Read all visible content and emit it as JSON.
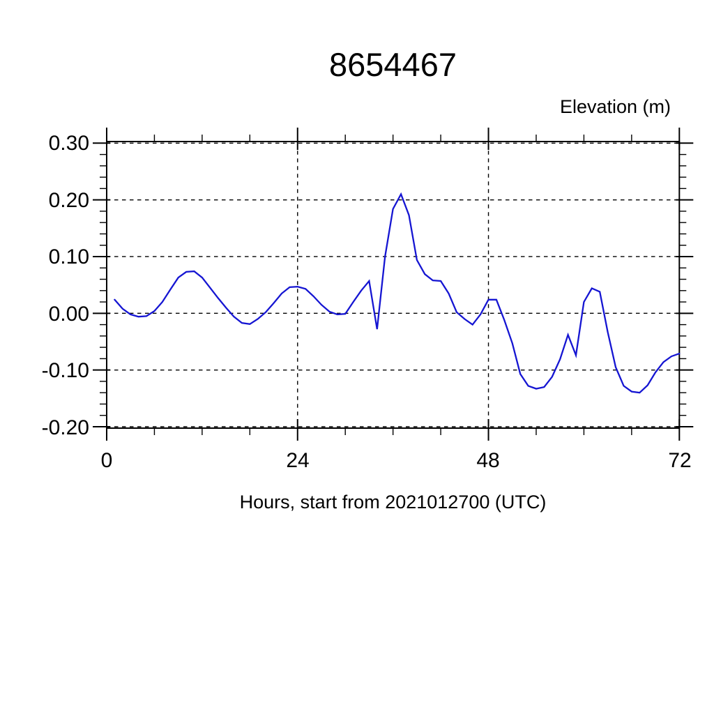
{
  "page": {
    "background": "#ffffff",
    "text_color": "#000000"
  },
  "chart_data": {
    "type": "line",
    "title": "8654467",
    "ylabel": "Elevation (m)",
    "xlabel": "Hours, start from 2021012700 (UTC)",
    "xlim": [
      0,
      72
    ],
    "ylim": [
      -0.2,
      0.3
    ],
    "x_ticks": [
      0,
      24,
      48,
      72
    ],
    "x_tick_labels": [
      "0",
      "24",
      "48",
      "72"
    ],
    "x_minor_step": 6,
    "y_ticks": [
      0.3,
      0.2,
      0.1,
      0.0,
      -0.1,
      -0.2
    ],
    "y_tick_labels": [
      "0.30",
      "0.20",
      "0.10",
      "0.00",
      "-0.10",
      "-0.20"
    ],
    "y_minor_step": 0.02,
    "grid": "dashed-major-both-axes",
    "legend": "none",
    "frame_color": "#000000",
    "grid_color": "#000000",
    "line_color": "#1515d2",
    "series": [
      {
        "name": "elevation",
        "x": [
          1,
          2,
          3,
          4,
          5,
          6,
          7,
          8,
          9,
          10,
          11,
          12,
          13,
          14,
          15,
          16,
          17,
          18,
          19,
          20,
          21,
          22,
          23,
          24,
          25,
          26,
          27,
          28,
          29,
          30,
          31,
          32,
          33,
          34,
          35,
          36,
          37,
          38,
          39,
          40,
          41,
          42,
          43,
          44,
          45,
          46,
          47,
          48,
          49,
          50,
          51,
          52,
          53,
          54,
          55,
          56,
          57,
          58,
          59,
          60,
          61,
          62,
          63,
          64,
          65,
          66,
          67,
          68,
          69,
          70,
          71,
          72
        ],
        "y": [
          0.024,
          0.008,
          -0.002,
          -0.006,
          -0.005,
          0.004,
          0.02,
          0.042,
          0.063,
          0.073,
          0.074,
          0.063,
          0.045,
          0.027,
          0.01,
          -0.006,
          -0.017,
          -0.019,
          -0.01,
          0.002,
          0.018,
          0.035,
          0.046,
          0.047,
          0.043,
          0.03,
          0.015,
          0.003,
          -0.002,
          -0.001,
          0.02,
          0.04,
          0.057,
          -0.028,
          0.1,
          0.184,
          0.21,
          0.173,
          0.094,
          0.069,
          0.058,
          0.057,
          0.035,
          0.002,
          -0.01,
          -0.02,
          -0.002,
          0.024,
          0.024,
          -0.012,
          -0.053,
          -0.107,
          -0.128,
          -0.133,
          -0.13,
          -0.112,
          -0.081,
          -0.038,
          -0.074,
          0.02,
          0.044,
          0.038,
          -0.033,
          -0.095,
          -0.128,
          -0.138,
          -0.14,
          -0.127,
          -0.104,
          -0.086,
          -0.076,
          -0.071
        ]
      }
    ]
  }
}
